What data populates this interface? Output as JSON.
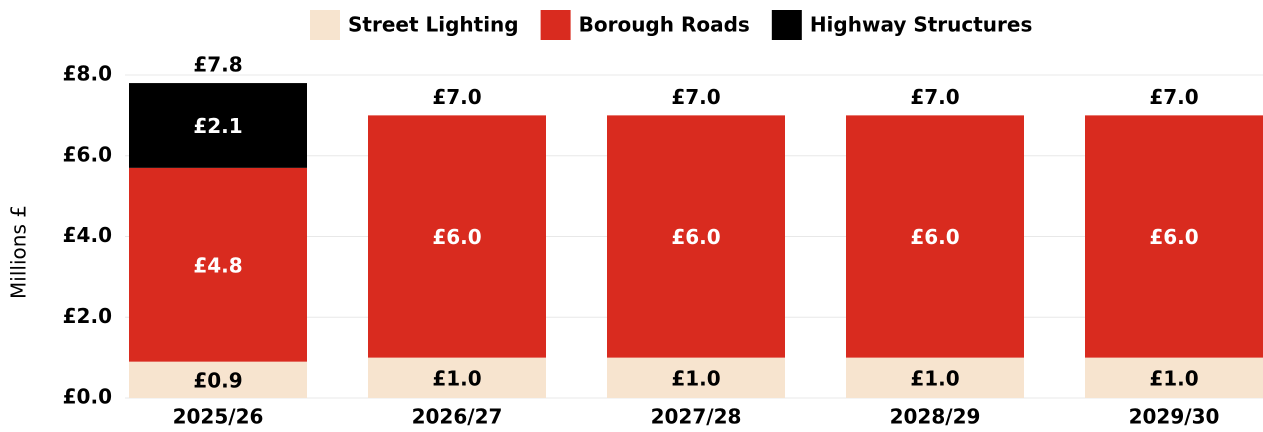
{
  "chart_data": {
    "type": "stacked_bar",
    "y_label": "Millions £",
    "categories": [
      "2025/26",
      "2026/27",
      "2027/28",
      "2028/29",
      "2029/30"
    ],
    "series": [
      {
        "name": "Street Lighting",
        "color": "#f7e4cf",
        "label_color": "#000000",
        "values": [
          0.9,
          1.0,
          1.0,
          1.0,
          1.0
        ],
        "value_labels": [
          "£0.9",
          "£1.0",
          "£1.0",
          "£1.0",
          "£1.0"
        ]
      },
      {
        "name": "Borough Roads",
        "color": "#d92b1f",
        "label_color": "#ffffff",
        "values": [
          4.8,
          6.0,
          6.0,
          6.0,
          6.0
        ],
        "value_labels": [
          "£4.8",
          "£6.0",
          "£6.0",
          "£6.0",
          "£6.0"
        ]
      },
      {
        "name": "Highway Structures",
        "color": "#000000",
        "label_color": "#ffffff",
        "values": [
          2.1,
          0,
          0,
          0,
          0
        ],
        "value_labels": [
          "£2.1",
          null,
          null,
          null,
          null
        ]
      }
    ],
    "totals": {
      "values": [
        7.8,
        7.0,
        7.0,
        7.0,
        7.0
      ],
      "value_labels": [
        "£7.8",
        "£7.0",
        "£7.0",
        "£7.0",
        "£7.0"
      ]
    },
    "ylim": [
      0,
      8
    ],
    "yticks": [
      {
        "value": 0,
        "label": "£0.0"
      },
      {
        "value": 2,
        "label": "£2.0"
      },
      {
        "value": 4,
        "label": "£4.0"
      },
      {
        "value": 6,
        "label": "£6.0"
      },
      {
        "value": 8,
        "label": "£8.0"
      }
    ],
    "grid": true,
    "legend": "top"
  }
}
